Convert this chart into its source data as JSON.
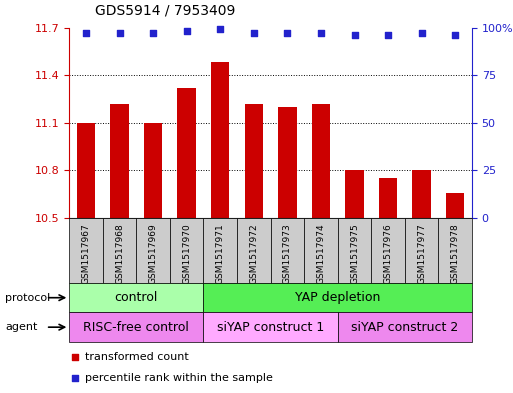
{
  "title": "GDS5914 / 7953409",
  "samples": [
    "GSM1517967",
    "GSM1517968",
    "GSM1517969",
    "GSM1517970",
    "GSM1517971",
    "GSM1517972",
    "GSM1517973",
    "GSM1517974",
    "GSM1517975",
    "GSM1517976",
    "GSM1517977",
    "GSM1517978"
  ],
  "transformed_counts": [
    11.1,
    11.22,
    11.1,
    11.32,
    11.48,
    11.22,
    11.2,
    11.22,
    10.8,
    10.75,
    10.8,
    10.66
  ],
  "percentile_ranks": [
    97,
    97,
    97,
    98,
    99,
    97,
    97,
    97,
    96,
    96,
    97,
    96
  ],
  "ylim_left": [
    10.5,
    11.7
  ],
  "ylim_right": [
    0,
    100
  ],
  "yticks_left": [
    10.5,
    10.8,
    11.1,
    11.4,
    11.7
  ],
  "yticks_right": [
    0,
    25,
    50,
    75,
    100
  ],
  "ytick_labels_left": [
    "10.5",
    "10.8",
    "11.1",
    "11.4",
    "11.7"
  ],
  "ytick_labels_right": [
    "0",
    "25",
    "50",
    "75",
    "100%"
  ],
  "bar_color": "#cc0000",
  "dot_color": "#2222cc",
  "protocol_groups": [
    {
      "label": "control",
      "start": 0,
      "end": 3,
      "color": "#aaffaa"
    },
    {
      "label": "YAP depletion",
      "start": 4,
      "end": 11,
      "color": "#55ee55"
    }
  ],
  "agent_groups": [
    {
      "label": "RISC-free control",
      "start": 0,
      "end": 3,
      "color": "#ee88ee"
    },
    {
      "label": "siYAP construct 1",
      "start": 4,
      "end": 7,
      "color": "#ffaaff"
    },
    {
      "label": "siYAP construct 2",
      "start": 8,
      "end": 11,
      "color": "#ee88ee"
    }
  ],
  "legend_items": [
    {
      "label": "transformed count",
      "color": "#cc0000"
    },
    {
      "label": "percentile rank within the sample",
      "color": "#2222cc"
    }
  ],
  "protocol_label": "protocol",
  "agent_label": "agent",
  "background_color": "#ffffff",
  "sample_bg_color": "#cccccc",
  "border_color": "#888888"
}
